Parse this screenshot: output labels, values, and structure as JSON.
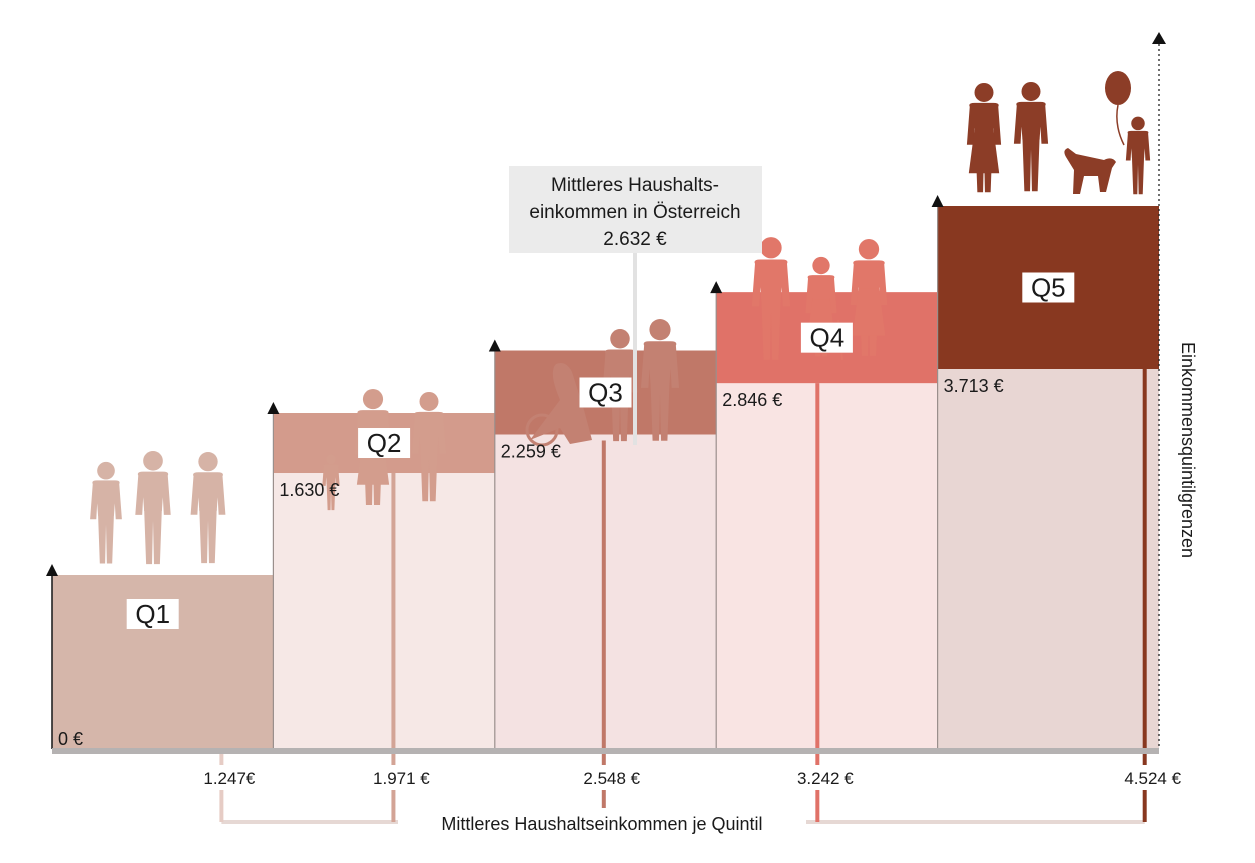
{
  "chart_data": {
    "type": "bar",
    "subtype": "stepped quintile income chart",
    "categories": [
      "Q1",
      "Q2",
      "Q3",
      "Q4",
      "Q5"
    ],
    "quintile_boundaries": {
      "values": [
        0,
        1630,
        2259,
        2846,
        3713
      ],
      "labels": [
        "0 €",
        "1.630 €",
        "2.259 €",
        "2.846 €",
        "3.713 €"
      ]
    },
    "median_income_per_quintile": {
      "values": [
        1247,
        1971,
        2548,
        3242,
        4524
      ],
      "labels": [
        "1.247€",
        "1.971 €",
        "2.548 €",
        "3.242 €",
        "4.524 €"
      ]
    },
    "overall_median": {
      "value": 2632,
      "label_lines": [
        "Mittleres Haushalts-",
        "einkommen in Österreich",
        "2.632 €"
      ]
    },
    "axis_labels": {
      "bottom": "Mittleres Haushaltseinkommen je Quintil",
      "right": "Einkommensquintilgrenzen"
    },
    "colors": {
      "header": [
        "#d5b6aa",
        "#d39b8c",
        "#c07868",
        "#e07268",
        "#883820"
      ],
      "body": [
        "#d5b6aa",
        "#f6e8e6",
        "#f4e2e2",
        "#f9e4e3",
        "#e8d6d3"
      ],
      "median_line": [
        "#e6ccc5",
        "#d3a496",
        "#c07868",
        "#e07268",
        "#883820"
      ],
      "baseline": "#b5b2b2",
      "callout_bg": "#ebebeb",
      "silhouette": [
        "#d6b3a6",
        "#d39d8d",
        "#c38172",
        "#e17769",
        "#8c3d27"
      ]
    },
    "icons": [
      "three-teen-silhouettes-icon",
      "family-silhouettes-icon",
      "couple-and-wheelchair-user-silhouettes-icon",
      "elderly-and-businessman-silhouettes-icon",
      "family-with-dog-and-balloon-silhouettes-icon"
    ],
    "legend": "none",
    "grid": false
  }
}
